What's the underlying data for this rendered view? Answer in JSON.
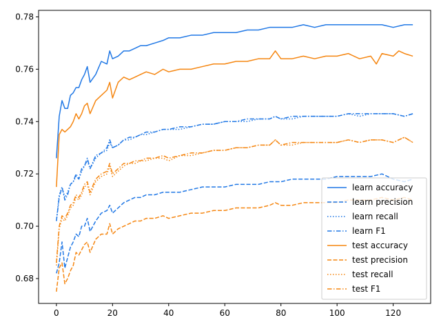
{
  "chart_data": {
    "type": "line",
    "title": "",
    "xlabel": "",
    "ylabel": "",
    "xlim": [
      -6.35,
      133.35
    ],
    "ylim": [
      0.6705,
      0.7825
    ],
    "xticks": [
      0,
      20,
      40,
      60,
      80,
      100,
      120
    ],
    "yticks": [
      0.68,
      0.7,
      0.72,
      0.74,
      0.76,
      0.78
    ],
    "ytick_labels": [
      "0.68",
      "0.70",
      "0.72",
      "0.74",
      "0.76",
      "0.78"
    ],
    "grid": false,
    "legend": "lower-right",
    "colors": {
      "learn": "#1f77e5",
      "test": "#f5850f"
    },
    "series": [
      {
        "name": "learn accuracy",
        "group": "learn",
        "style": "solid",
        "x": [
          0,
          1,
          2,
          3,
          4,
          5,
          6,
          7,
          8,
          9,
          10,
          11,
          12,
          14,
          16,
          18,
          19,
          20,
          22,
          24,
          26,
          28,
          30,
          32,
          35,
          38,
          40,
          44,
          48,
          52,
          56,
          60,
          64,
          68,
          72,
          76,
          78,
          80,
          84,
          88,
          92,
          96,
          100,
          104,
          108,
          112,
          116,
          120,
          124,
          127
        ],
        "y": [
          0.726,
          0.742,
          0.748,
          0.745,
          0.745,
          0.75,
          0.751,
          0.753,
          0.753,
          0.756,
          0.758,
          0.761,
          0.755,
          0.758,
          0.763,
          0.762,
          0.767,
          0.764,
          0.765,
          0.767,
          0.767,
          0.768,
          0.769,
          0.769,
          0.77,
          0.771,
          0.772,
          0.772,
          0.773,
          0.773,
          0.774,
          0.774,
          0.774,
          0.775,
          0.775,
          0.776,
          0.776,
          0.776,
          0.776,
          0.777,
          0.776,
          0.777,
          0.777,
          0.777,
          0.777,
          0.777,
          0.777,
          0.776,
          0.777,
          0.777
        ]
      },
      {
        "name": "test accuracy",
        "group": "test",
        "style": "solid",
        "x": [
          0,
          1,
          2,
          3,
          4,
          5,
          6,
          7,
          8,
          9,
          10,
          11,
          12,
          14,
          16,
          18,
          19,
          20,
          22,
          24,
          26,
          28,
          30,
          32,
          35,
          38,
          40,
          44,
          48,
          52,
          56,
          60,
          64,
          68,
          72,
          76,
          78,
          80,
          84,
          88,
          92,
          96,
          100,
          104,
          108,
          112,
          114,
          116,
          120,
          122,
          124,
          127
        ],
        "y": [
          0.715,
          0.735,
          0.737,
          0.736,
          0.737,
          0.738,
          0.74,
          0.743,
          0.741,
          0.743,
          0.746,
          0.747,
          0.743,
          0.748,
          0.75,
          0.752,
          0.755,
          0.749,
          0.755,
          0.757,
          0.756,
          0.757,
          0.758,
          0.759,
          0.758,
          0.76,
          0.759,
          0.76,
          0.76,
          0.761,
          0.762,
          0.762,
          0.763,
          0.763,
          0.764,
          0.764,
          0.767,
          0.764,
          0.764,
          0.765,
          0.764,
          0.765,
          0.765,
          0.766,
          0.764,
          0.765,
          0.762,
          0.766,
          0.765,
          0.767,
          0.766,
          0.765
        ]
      },
      {
        "name": "learn recall",
        "group": "learn",
        "style": "dotted",
        "x": [
          0,
          1,
          2,
          3,
          4,
          5,
          6,
          7,
          8,
          9,
          10,
          11,
          12,
          14,
          16,
          18,
          19,
          20,
          22,
          24,
          26,
          28,
          30,
          32,
          35,
          38,
          40,
          44,
          48,
          52,
          56,
          60,
          64,
          68,
          72,
          76,
          78,
          80,
          84,
          88,
          92,
          96,
          100,
          104,
          108,
          112,
          116,
          120,
          124,
          127
        ],
        "y": [
          0.702,
          0.712,
          0.715,
          0.711,
          0.713,
          0.716,
          0.717,
          0.719,
          0.718,
          0.721,
          0.723,
          0.725,
          0.722,
          0.726,
          0.728,
          0.729,
          0.732,
          0.73,
          0.731,
          0.733,
          0.733,
          0.734,
          0.735,
          0.735,
          0.736,
          0.737,
          0.737,
          0.737,
          0.738,
          0.739,
          0.739,
          0.74,
          0.74,
          0.74,
          0.741,
          0.741,
          0.742,
          0.741,
          0.741,
          0.742,
          0.742,
          0.742,
          0.742,
          0.743,
          0.742,
          0.743,
          0.743,
          0.743,
          0.742,
          0.743
        ]
      },
      {
        "name": "learn F1",
        "group": "learn",
        "style": "dashdot",
        "x": [
          0,
          1,
          2,
          3,
          4,
          5,
          6,
          7,
          8,
          9,
          10,
          11,
          12,
          14,
          16,
          18,
          19,
          20,
          22,
          24,
          26,
          28,
          30,
          32,
          35,
          38,
          40,
          44,
          48,
          52,
          56,
          60,
          64,
          68,
          72,
          76,
          78,
          80,
          84,
          88,
          92,
          96,
          100,
          104,
          108,
          112,
          116,
          120,
          124,
          127
        ],
        "y": [
          0.702,
          0.711,
          0.715,
          0.71,
          0.712,
          0.716,
          0.717,
          0.72,
          0.718,
          0.722,
          0.723,
          0.726,
          0.722,
          0.727,
          0.728,
          0.73,
          0.733,
          0.73,
          0.731,
          0.733,
          0.734,
          0.734,
          0.735,
          0.736,
          0.736,
          0.737,
          0.737,
          0.738,
          0.738,
          0.739,
          0.739,
          0.74,
          0.74,
          0.741,
          0.741,
          0.741,
          0.742,
          0.741,
          0.742,
          0.742,
          0.742,
          0.742,
          0.742,
          0.743,
          0.743,
          0.743,
          0.743,
          0.743,
          0.742,
          0.743
        ]
      },
      {
        "name": "test recall",
        "group": "test",
        "style": "dotted",
        "x": [
          0,
          1,
          2,
          3,
          4,
          5,
          6,
          7,
          8,
          9,
          10,
          11,
          12,
          14,
          16,
          18,
          19,
          20,
          22,
          24,
          26,
          28,
          30,
          32,
          35,
          38,
          40,
          44,
          48,
          52,
          56,
          60,
          64,
          68,
          72,
          76,
          78,
          80,
          84,
          88,
          92,
          96,
          100,
          104,
          108,
          112,
          116,
          120,
          124,
          127
        ],
        "y": [
          0.685,
          0.699,
          0.703,
          0.702,
          0.704,
          0.707,
          0.708,
          0.711,
          0.71,
          0.712,
          0.715,
          0.716,
          0.712,
          0.717,
          0.719,
          0.72,
          0.723,
          0.719,
          0.721,
          0.723,
          0.724,
          0.724,
          0.725,
          0.725,
          0.726,
          0.726,
          0.725,
          0.727,
          0.727,
          0.728,
          0.729,
          0.729,
          0.73,
          0.73,
          0.731,
          0.731,
          0.733,
          0.731,
          0.731,
          0.732,
          0.732,
          0.732,
          0.732,
          0.733,
          0.732,
          0.733,
          0.733,
          0.732,
          0.734,
          0.732
        ]
      },
      {
        "name": "test F1",
        "group": "test",
        "style": "dashdot",
        "x": [
          0,
          1,
          2,
          3,
          4,
          5,
          6,
          7,
          8,
          9,
          10,
          11,
          12,
          14,
          16,
          18,
          19,
          20,
          22,
          24,
          26,
          28,
          30,
          32,
          35,
          38,
          40,
          44,
          48,
          52,
          56,
          60,
          64,
          68,
          72,
          76,
          78,
          80,
          84,
          88,
          92,
          96,
          100,
          104,
          108,
          112,
          116,
          120,
          124,
          127
        ],
        "y": [
          0.686,
          0.7,
          0.704,
          0.703,
          0.705,
          0.708,
          0.709,
          0.712,
          0.711,
          0.713,
          0.716,
          0.717,
          0.713,
          0.718,
          0.72,
          0.721,
          0.724,
          0.72,
          0.722,
          0.724,
          0.724,
          0.725,
          0.725,
          0.726,
          0.726,
          0.727,
          0.726,
          0.727,
          0.728,
          0.728,
          0.729,
          0.729,
          0.73,
          0.73,
          0.731,
          0.731,
          0.733,
          0.731,
          0.732,
          0.732,
          0.732,
          0.732,
          0.732,
          0.733,
          0.732,
          0.733,
          0.733,
          0.732,
          0.734,
          0.732
        ]
      },
      {
        "name": "learn precision",
        "group": "learn",
        "style": "dashed",
        "x": [
          0,
          1,
          2,
          3,
          4,
          5,
          6,
          7,
          8,
          9,
          10,
          11,
          12,
          14,
          16,
          18,
          19,
          20,
          22,
          24,
          26,
          28,
          30,
          32,
          35,
          38,
          40,
          44,
          48,
          52,
          56,
          60,
          64,
          68,
          72,
          76,
          78,
          80,
          84,
          88,
          92,
          96,
          100,
          104,
          108,
          112,
          116,
          120,
          124,
          127
        ],
        "y": [
          0.682,
          0.686,
          0.694,
          0.684,
          0.688,
          0.692,
          0.694,
          0.697,
          0.696,
          0.7,
          0.7,
          0.703,
          0.698,
          0.702,
          0.705,
          0.706,
          0.708,
          0.705,
          0.707,
          0.709,
          0.71,
          0.711,
          0.711,
          0.712,
          0.712,
          0.713,
          0.713,
          0.713,
          0.714,
          0.715,
          0.715,
          0.715,
          0.716,
          0.716,
          0.716,
          0.717,
          0.717,
          0.717,
          0.718,
          0.718,
          0.718,
          0.718,
          0.719,
          0.719,
          0.719,
          0.719,
          0.72,
          0.718,
          0.717,
          0.718
        ]
      },
      {
        "name": "test precision",
        "group": "test",
        "style": "dashed",
        "x": [
          0,
          1,
          2,
          3,
          4,
          5,
          6,
          7,
          8,
          9,
          10,
          11,
          12,
          14,
          16,
          18,
          19,
          20,
          22,
          24,
          26,
          28,
          30,
          32,
          35,
          38,
          40,
          44,
          48,
          52,
          56,
          60,
          64,
          68,
          72,
          76,
          78,
          80,
          84,
          88,
          92,
          96,
          100,
          104,
          108,
          112,
          116,
          120,
          124,
          127
        ],
        "y": [
          0.675,
          0.684,
          0.686,
          0.678,
          0.68,
          0.683,
          0.685,
          0.69,
          0.689,
          0.691,
          0.693,
          0.694,
          0.69,
          0.695,
          0.697,
          0.697,
          0.701,
          0.697,
          0.699,
          0.7,
          0.701,
          0.702,
          0.702,
          0.703,
          0.703,
          0.704,
          0.703,
          0.704,
          0.705,
          0.705,
          0.706,
          0.706,
          0.707,
          0.707,
          0.707,
          0.708,
          0.709,
          0.708,
          0.708,
          0.709,
          0.709,
          0.709,
          0.709,
          0.71,
          0.71,
          0.71,
          0.711,
          0.71,
          0.711,
          0.71
        ]
      }
    ],
    "legend_order": [
      "learn accuracy",
      "learn precision",
      "learn recall",
      "learn F1",
      "test accuracy",
      "test precision",
      "test recall",
      "test F1"
    ]
  }
}
